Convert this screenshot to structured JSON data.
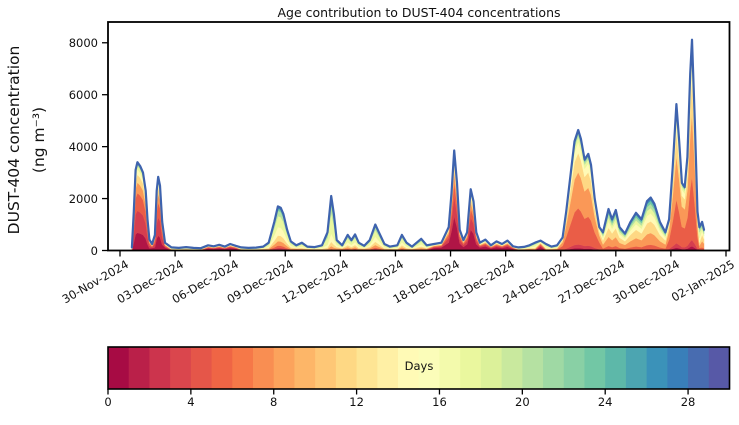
{
  "figure": {
    "title": "Age contribution to DUST-404 concentrations",
    "background_color": "#ffffff"
  },
  "y_axis": {
    "label_line1": "DUST-404 concentration",
    "label_line2": "(ng m⁻³)",
    "ticks": [
      0,
      2000,
      4000,
      6000,
      8000
    ],
    "range": [
      0,
      8800
    ]
  },
  "x_axis": {
    "tick_days": [
      0,
      3,
      6,
      9,
      12,
      15,
      18,
      21,
      24,
      27,
      30,
      33
    ],
    "tick_labels": [
      "30-Nov-2024",
      "03-Dec-2024",
      "06-Dec-2024",
      "09-Dec-2024",
      "12-Dec-2024",
      "15-Dec-2024",
      "18-Dec-2024",
      "21-Dec-2024",
      "24-Dec-2024",
      "27-Dec-2024",
      "30-Dec-2024",
      "02-Jan-2025"
    ],
    "range_days": [
      -0.65,
      33.2
    ]
  },
  "colorbar": {
    "label": "Days",
    "orientation": "horizontal",
    "ticks": [
      0,
      4,
      8,
      12,
      16,
      20,
      24,
      28
    ],
    "range": [
      0,
      30
    ],
    "n_bins": 30,
    "colormap": "Spectral",
    "colormap_stops": [
      "#9e0142",
      "#d53e4f",
      "#f46d43",
      "#fdae61",
      "#fee08b",
      "#ffffbf",
      "#e6f598",
      "#abdda4",
      "#66c2a5",
      "#3288bd",
      "#5e4fa2"
    ]
  },
  "chart_data": {
    "type": "area",
    "stacked": true,
    "title": "Age contribution to DUST-404 concentrations",
    "xlabel": "",
    "ylabel": "DUST-404 concentration (ng m⁻³)",
    "ylim": [
      0,
      8800
    ],
    "x_unit": "days since 30-Nov-2024 00:00",
    "legend": "colorbar (age in days, 0-30, Spectral colormap)",
    "top_line_color": "#3e63ae",
    "age_bands_days": [
      [
        0,
        2
      ],
      [
        2,
        4
      ],
      [
        4,
        6
      ],
      [
        6,
        10
      ],
      [
        10,
        13
      ],
      [
        13,
        16
      ],
      [
        16,
        19
      ],
      [
        19,
        22
      ],
      [
        22,
        25
      ],
      [
        25,
        28
      ],
      [
        28,
        30
      ]
    ],
    "age_profiles": {
      "F": [
        0.2,
        0.25,
        0.2,
        0.12,
        0.09,
        0.06,
        0.04,
        0.015,
        0.01,
        0.01,
        0.005
      ],
      "G": [
        0.34,
        0.2,
        0.14,
        0.1,
        0.08,
        0.06,
        0.04,
        0.015,
        0.01,
        0.01,
        0.005
      ],
      "Y": [
        0.02,
        0.03,
        0.3,
        0.3,
        0.16,
        0.09,
        0.045,
        0.025,
        0.015,
        0.01,
        0.005
      ],
      "M": [
        0.03,
        0.03,
        0.05,
        0.1,
        0.13,
        0.19,
        0.25,
        0.12,
        0.05,
        0.03,
        0.02
      ],
      "A": [
        0.01,
        0.02,
        0.08,
        0.22,
        0.22,
        0.15,
        0.1,
        0.08,
        0.06,
        0.04,
        0.02
      ],
      "B": [
        0.06,
        0.07,
        0.1,
        0.12,
        0.12,
        0.12,
        0.14,
        0.11,
        0.08,
        0.05,
        0.03
      ],
      "R": [
        0.38,
        0.14,
        0.1,
        0.09,
        0.07,
        0.06,
        0.06,
        0.04,
        0.03,
        0.02,
        0.01
      ],
      "O": [
        0.0,
        0.01,
        0.02,
        0.05,
        0.08,
        0.15,
        0.38,
        0.15,
        0.08,
        0.05,
        0.03
      ]
    },
    "x": [
      0.65,
      0.75,
      0.85,
      0.95,
      1.1,
      1.25,
      1.4,
      1.5,
      1.6,
      1.75,
      1.9,
      2.0,
      2.08,
      2.18,
      2.3,
      2.45,
      2.8,
      3.2,
      3.6,
      4.0,
      4.4,
      4.8,
      5.1,
      5.4,
      5.7,
      6.0,
      6.3,
      6.6,
      7.0,
      7.4,
      7.8,
      8.1,
      8.4,
      8.6,
      8.75,
      8.9,
      9.1,
      9.3,
      9.6,
      9.9,
      10.2,
      10.6,
      11.0,
      11.3,
      11.5,
      11.65,
      11.8,
      12.1,
      12.4,
      12.6,
      12.8,
      13.0,
      13.3,
      13.6,
      13.9,
      14.1,
      14.4,
      14.7,
      15.1,
      15.35,
      15.6,
      15.9,
      16.4,
      16.7,
      17.1,
      17.5,
      17.9,
      18.05,
      18.2,
      18.35,
      18.5,
      18.7,
      18.9,
      19.1,
      19.25,
      19.4,
      19.6,
      19.9,
      20.2,
      20.5,
      20.8,
      21.1,
      21.4,
      21.7,
      22.0,
      22.3,
      22.6,
      22.9,
      23.2,
      23.5,
      23.8,
      24.1,
      24.3,
      24.55,
      24.75,
      24.95,
      25.1,
      25.3,
      25.5,
      25.65,
      25.85,
      26.1,
      26.3,
      26.6,
      26.8,
      27.0,
      27.2,
      27.5,
      27.8,
      28.1,
      28.4,
      28.7,
      28.9,
      29.1,
      29.4,
      29.7,
      29.9,
      30.1,
      30.3,
      30.45,
      30.6,
      30.75,
      30.9,
      31.05,
      31.15,
      31.3,
      31.45,
      31.55,
      31.7,
      31.8
    ],
    "total_ng_m3": [
      120,
      1500,
      3100,
      3400,
      3250,
      3000,
      2300,
      1200,
      420,
      250,
      600,
      2300,
      2840,
      2500,
      1100,
      300,
      120,
      100,
      130,
      100,
      90,
      200,
      160,
      220,
      150,
      250,
      180,
      120,
      100,
      110,
      150,
      300,
      1100,
      1700,
      1650,
      1400,
      800,
      350,
      200,
      300,
      150,
      130,
      200,
      700,
      2100,
      1400,
      400,
      200,
      600,
      400,
      620,
      300,
      180,
      400,
      1000,
      700,
      250,
      150,
      200,
      600,
      300,
      150,
      450,
      200,
      250,
      300,
      900,
      2200,
      3850,
      2600,
      800,
      400,
      700,
      2360,
      1900,
      700,
      300,
      420,
      200,
      350,
      250,
      380,
      160,
      120,
      140,
      200,
      300,
      380,
      250,
      150,
      200,
      500,
      1500,
      3000,
      4200,
      4640,
      4300,
      3500,
      3720,
      3300,
      2000,
      900,
      700,
      1600,
      1200,
      1560,
      900,
      650,
      1100,
      1450,
      1200,
      1900,
      2040,
      1800,
      1100,
      700,
      1200,
      3200,
      5640,
      4200,
      2600,
      2440,
      3600,
      6800,
      8120,
      5000,
      1500,
      900,
      1100,
      800
    ],
    "profile_per_point": [
      "B",
      "F",
      "F",
      "F",
      "F",
      "F",
      "F",
      "F",
      "F",
      "R",
      "F",
      "F",
      "F",
      "F",
      "F",
      "R",
      "B",
      "B",
      "B",
      "B",
      "B",
      "R",
      "R",
      "R",
      "R",
      "R",
      "R",
      "B",
      "B",
      "B",
      "B",
      "M",
      "M",
      "M",
      "M",
      "M",
      "M",
      "M",
      "B",
      "M",
      "B",
      "B",
      "M",
      "O",
      "O",
      "O",
      "M",
      "B",
      "M",
      "M",
      "M",
      "M",
      "B",
      "M",
      "M",
      "M",
      "M",
      "B",
      "M",
      "M",
      "M",
      "B",
      "M",
      "B",
      "R",
      "R",
      "G",
      "G",
      "G",
      "G",
      "G",
      "G",
      "G",
      "G",
      "G",
      "G",
      "R",
      "R",
      "R",
      "R",
      "R",
      "R",
      "R",
      "B",
      "B",
      "B",
      "M",
      "R",
      "M",
      "B",
      "B",
      "Y",
      "Y",
      "Y",
      "Y",
      "Y",
      "Y",
      "Y",
      "Y",
      "Y",
      "Y",
      "Y",
      "A",
      "A",
      "A",
      "A",
      "A",
      "A",
      "A",
      "A",
      "A",
      "A",
      "A",
      "A",
      "A",
      "A",
      "Y",
      "Y",
      "Y",
      "Y",
      "Y",
      "Y",
      "Y",
      "Y",
      "Y",
      "Y",
      "Y",
      "M",
      "A",
      "A"
    ]
  }
}
